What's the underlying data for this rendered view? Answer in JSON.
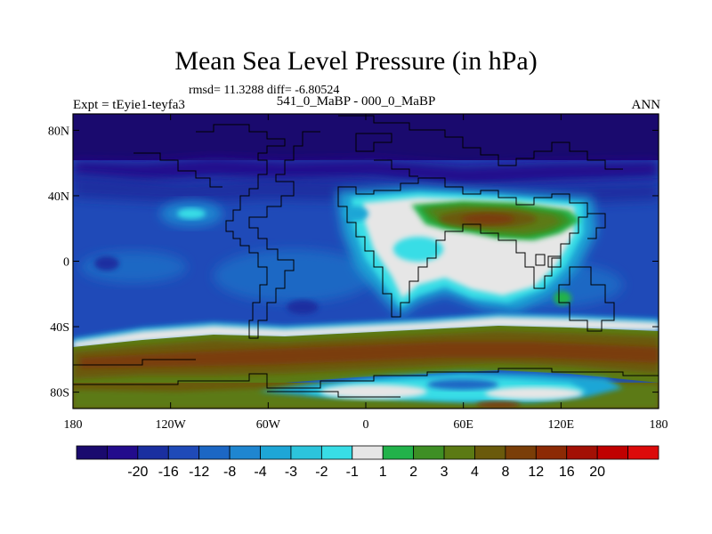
{
  "header": {
    "title": "Mean Sea Level Pressure (in hPa)",
    "stats": "rmsd= 11.3288 diff= -6.80524",
    "subtitle": "541_0_MaBP - 000_0_MaBP",
    "left_label": "Expt = tEyie1-teyfa3",
    "right_label": "ANN"
  },
  "axes": {
    "y_ticks": [
      {
        "label": "80N",
        "value": 80
      },
      {
        "label": "40N",
        "value": 40
      },
      {
        "label": "0",
        "value": 0
      },
      {
        "label": "40S",
        "value": -40
      },
      {
        "label": "80S",
        "value": -80
      }
    ],
    "x_ticks": [
      {
        "label": "180",
        "value": -180
      },
      {
        "label": "120W",
        "value": -120
      },
      {
        "label": "60W",
        "value": -60
      },
      {
        "label": "0",
        "value": 0
      },
      {
        "label": "60E",
        "value": 60
      },
      {
        "label": "120E",
        "value": 120
      },
      {
        "label": "180",
        "value": 180
      }
    ],
    "lon_range": [
      -180,
      180
    ],
    "lat_range": [
      -90,
      90
    ]
  },
  "colorbar": {
    "colors": [
      "#1a0a6e",
      "#230c8c",
      "#1a2fa0",
      "#1f4ab8",
      "#1c67c4",
      "#1f86d0",
      "#1ea6d6",
      "#2cc4dc",
      "#38dde6",
      "#e6e6e6",
      "#22b24a",
      "#3e8f24",
      "#5b7a14",
      "#6a5a0c",
      "#7a3e08",
      "#8c2a05",
      "#a31005",
      "#c00000",
      "#dc0a0a"
    ],
    "labels": [
      "-20",
      "-16",
      "-12",
      "-8",
      "-4",
      "-3",
      "-2",
      "-1",
      "1",
      "2",
      "3",
      "4",
      "8",
      "12",
      "16",
      "20"
    ]
  }
}
